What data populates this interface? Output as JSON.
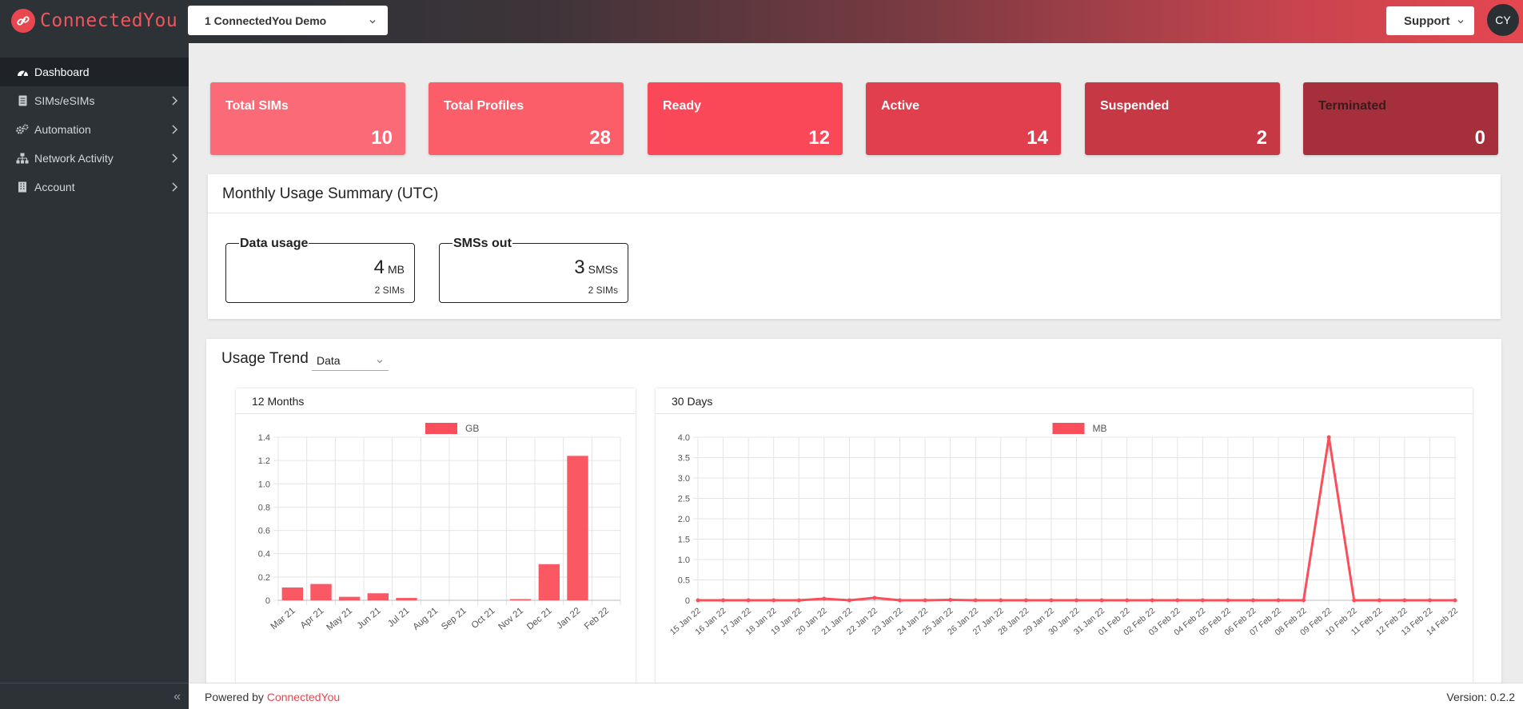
{
  "header": {
    "brand": "ConnectedYou",
    "account": "1 ConnectedYou Demo",
    "support": "Support",
    "avatar": "CY"
  },
  "sidebar": {
    "items": [
      {
        "label": "Dashboard",
        "icon": "dashboard-icon",
        "active": true
      },
      {
        "label": "SIMs/eSIMs",
        "icon": "document-icon"
      },
      {
        "label": "Automation",
        "icon": "cogs-icon"
      },
      {
        "label": "Network Activity",
        "icon": "network-icon"
      },
      {
        "label": "Account",
        "icon": "building-icon"
      }
    ],
    "collapse": "«"
  },
  "stats": [
    {
      "label": "Total SIMs",
      "value": "10"
    },
    {
      "label": "Total Profiles",
      "value": "28"
    },
    {
      "label": "Ready",
      "value": "12"
    },
    {
      "label": "Active",
      "value": "14"
    },
    {
      "label": "Suspended",
      "value": "2"
    },
    {
      "label": "Terminated",
      "value": "0"
    }
  ],
  "monthly": {
    "title": "Monthly Usage Summary (UTC)",
    "data": {
      "label": "Data usage",
      "value": "4",
      "unit": "MB",
      "sub": "2 SIMs"
    },
    "sms": {
      "label": "SMSs out",
      "value": "3",
      "unit": "SMSs",
      "sub": "2 SIMs"
    }
  },
  "trend": {
    "title": "Usage Trend",
    "selected": "Data"
  },
  "footer": {
    "powered": "Powered by ",
    "brand": "ConnectedYou",
    "version": "Version: 0.2.2"
  },
  "colors": {
    "accent": "#fa4f5a",
    "sidebar": "#2d3237"
  },
  "chart_data": [
    {
      "type": "bar",
      "title": "12 Months",
      "legend": "GB",
      "categories": [
        "Mar 21",
        "Apr 21",
        "May 21",
        "Jun 21",
        "Jul 21",
        "Aug 21",
        "Sep 21",
        "Oct 21",
        "Nov 21",
        "Dec 21",
        "Jan 22",
        "Feb 22"
      ],
      "values": [
        0.11,
        0.14,
        0.03,
        0.06,
        0.02,
        0,
        0,
        0,
        0.01,
        0.31,
        1.24,
        0
      ],
      "ylim": [
        0,
        1.4
      ],
      "yticks": [
        "0",
        "0.2",
        "0.4",
        "0.6",
        "0.8",
        "1.0",
        "1.2",
        "1.4"
      ]
    },
    {
      "type": "line",
      "title": "30 Days",
      "legend": "MB",
      "categories": [
        "15 Jan 22",
        "16 Jan 22",
        "17 Jan 22",
        "18 Jan 22",
        "19 Jan 22",
        "20 Jan 22",
        "21 Jan 22",
        "22 Jan 22",
        "23 Jan 22",
        "24 Jan 22",
        "25 Jan 22",
        "26 Jan 22",
        "27 Jan 22",
        "28 Jan 22",
        "29 Jan 22",
        "30 Jan 22",
        "31 Jan 22",
        "01 Feb 22",
        "02 Feb 22",
        "03 Feb 22",
        "04 Feb 22",
        "05 Feb 22",
        "06 Feb 22",
        "07 Feb 22",
        "08 Feb 22",
        "09 Feb 22",
        "10 Feb 22",
        "11 Feb 22",
        "12 Feb 22",
        "13 Feb 22",
        "14 Feb 22"
      ],
      "values": [
        0,
        0,
        0,
        0,
        0,
        0.04,
        0,
        0.06,
        0,
        0,
        0.01,
        0,
        0,
        0,
        0,
        0,
        0,
        0,
        0,
        0,
        0,
        0,
        0,
        0,
        0,
        4.0,
        0,
        0,
        0,
        0,
        0
      ],
      "ylim": [
        0,
        4.0
      ],
      "yticks": [
        "0",
        "0.5",
        "1.0",
        "1.5",
        "2.0",
        "2.5",
        "3.0",
        "3.5",
        "4.0"
      ]
    }
  ]
}
